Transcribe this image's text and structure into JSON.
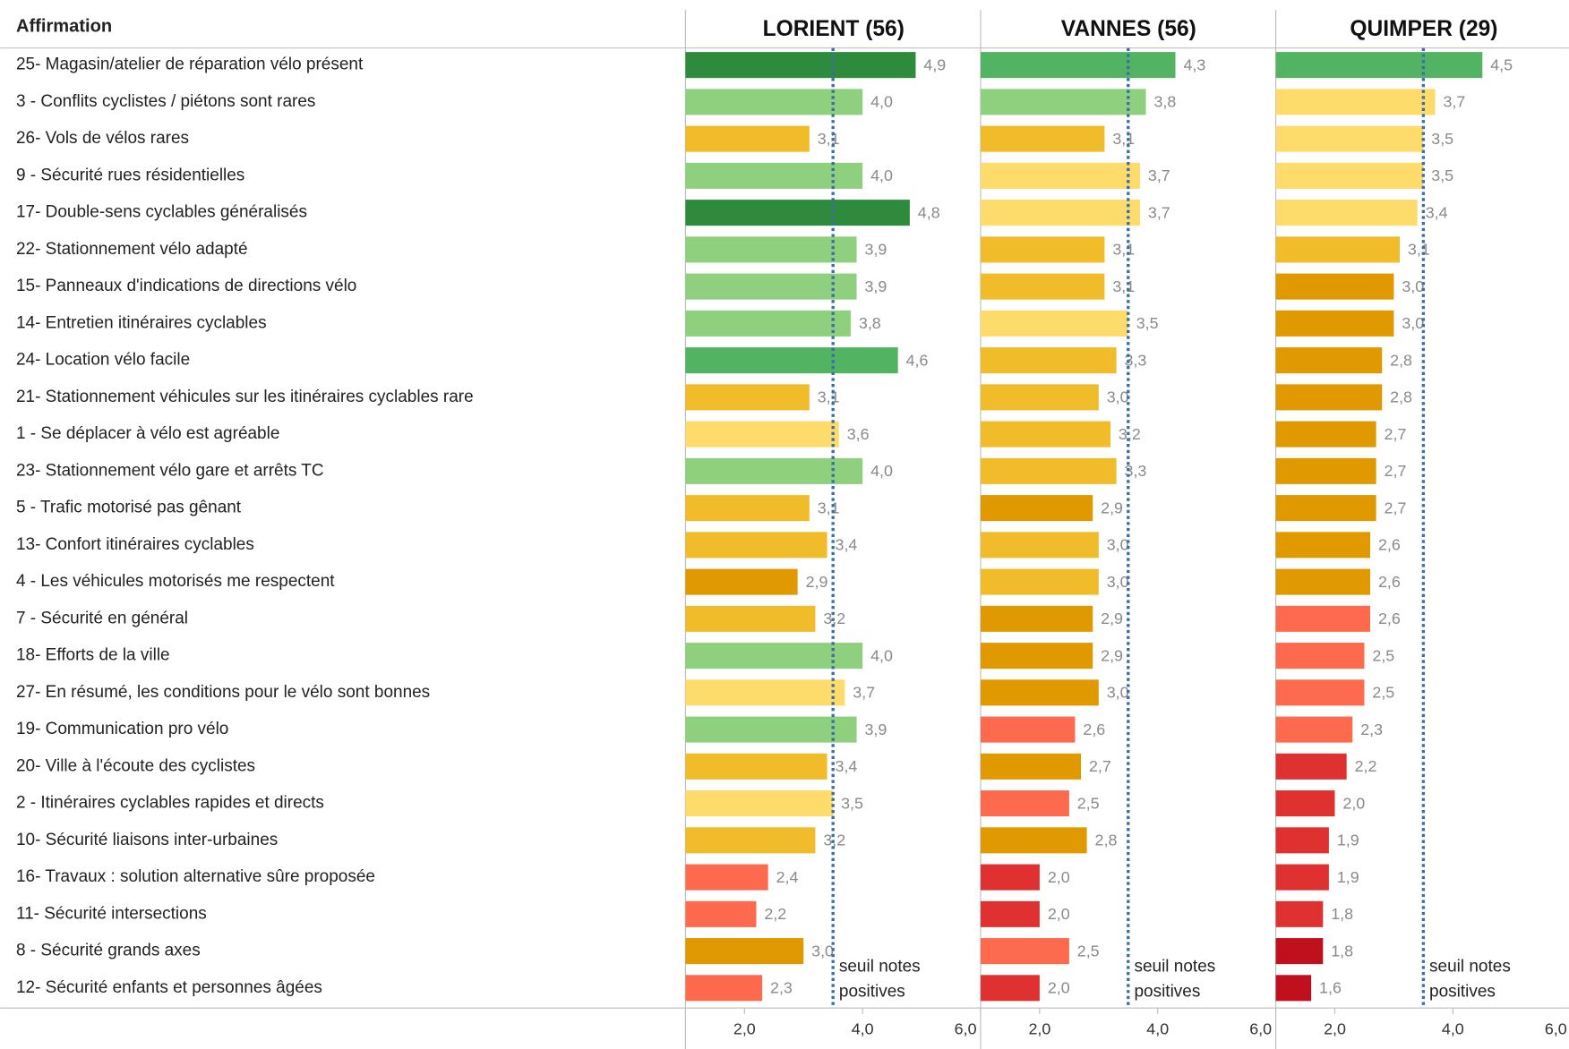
{
  "chart_data": {
    "type": "bar",
    "orientation": "horizontal",
    "header": "Affirmation",
    "categories": [
      "25- Magasin/atelier de réparation vélo présent",
      "3 - Conflits cyclistes / piétons sont rares",
      "26- Vols de vélos rares",
      "9 - Sécurité rues résidentielles",
      "17- Double-sens cyclables généralisés",
      "22- Stationnement vélo adapté",
      "15- Panneaux d'indications de directions vélo",
      "14- Entretien itinéraires cyclables",
      "24- Location vélo facile",
      "21- Stationnement véhicules sur les itinéraires cyclables rare",
      "1 - Se déplacer à vélo est agréable",
      "23- Stationnement vélo gare et arrêts TC",
      "5 - Trafic motorisé pas gênant",
      "13- Confort itinéraires cyclables",
      "4 - Les véhicules motorisés me respectent",
      "7 - Sécurité en général",
      "18- Efforts de la ville",
      "27- En résumé, les conditions pour le vélo sont bonnes",
      "19- Communication pro vélo",
      "20- Ville à l'écoute des cyclistes",
      "2 - Itinéraires cyclables rapides et directs",
      "10- Sécurité liaisons inter-urbaines",
      "16- Travaux : solution alternative sûre proposée",
      "11- Sécurité intersections",
      "8 - Sécurité grands axes",
      "12- Sécurité enfants et personnes âgées"
    ],
    "series": [
      {
        "name": "LORIENT (56)",
        "values": [
          4.9,
          4.0,
          3.1,
          4.0,
          4.8,
          3.9,
          3.9,
          3.8,
          4.6,
          3.1,
          3.6,
          4.0,
          3.1,
          3.4,
          2.9,
          3.2,
          4.0,
          3.7,
          3.9,
          3.4,
          3.5,
          3.2,
          2.4,
          2.2,
          3.0,
          2.3
        ],
        "value_labels": [
          "4,9",
          "4,0",
          "3,1",
          "4,0",
          "4,8",
          "3,9",
          "3,9",
          "3,8",
          "4,6",
          "3,1",
          "3,6",
          "4,0",
          "3,1",
          "3,4",
          "2,9",
          "3,2",
          "4,0",
          "3,7",
          "3,9",
          "3,4",
          "3,5",
          "3,2",
          "2,4",
          "2,2",
          "3,0",
          "2,3"
        ],
        "colors": [
          "#2e8b3e",
          "#8fd07e",
          "#f0bc2a",
          "#8fd07e",
          "#2e8b3e",
          "#8fd07e",
          "#8fd07e",
          "#8fd07e",
          "#52b463",
          "#f0bc2a",
          "#fddc6b",
          "#8fd07e",
          "#f0bc2a",
          "#f0bc2a",
          "#e09a00",
          "#f0bc2a",
          "#8fd07e",
          "#fddc6b",
          "#8fd07e",
          "#f0bc2a",
          "#fddc6b",
          "#f0bc2a",
          "#fd6a4d",
          "#fd6a4d",
          "#e09a00",
          "#fd6a4d"
        ]
      },
      {
        "name": "VANNES (56)",
        "values": [
          4.3,
          3.8,
          3.1,
          3.7,
          3.7,
          3.1,
          3.1,
          3.5,
          3.3,
          3.0,
          3.2,
          3.3,
          2.9,
          3.0,
          3.0,
          2.9,
          2.9,
          3.0,
          2.6,
          2.7,
          2.5,
          2.8,
          2.0,
          2.0,
          2.5,
          2.0
        ],
        "value_labels": [
          "4,3",
          "3,8",
          "3,1",
          "3,7",
          "3,7",
          "3,1",
          "3,1",
          "3,5",
          "3,3",
          "3,0",
          "3,2",
          "3,3",
          "2,9",
          "3,0",
          "3,0",
          "2,9",
          "2,9",
          "3,0",
          "2,6",
          "2,7",
          "2,5",
          "2,8",
          "2,0",
          "2,0",
          "2,5",
          "2,0"
        ],
        "colors": [
          "#52b463",
          "#8fd07e",
          "#f0bc2a",
          "#fddc6b",
          "#fddc6b",
          "#f0bc2a",
          "#f0bc2a",
          "#fddc6b",
          "#f0bc2a",
          "#f0bc2a",
          "#f0bc2a",
          "#f0bc2a",
          "#e09a00",
          "#f0bc2a",
          "#f0bc2a",
          "#e09a00",
          "#e09a00",
          "#e09a00",
          "#fd6a4d",
          "#e09a00",
          "#fd6a4d",
          "#e09a00",
          "#e03131",
          "#e03131",
          "#fd6a4d",
          "#e03131"
        ]
      },
      {
        "name": "QUIMPER (29)",
        "values": [
          4.5,
          3.7,
          3.5,
          3.5,
          3.4,
          3.1,
          3.0,
          3.0,
          2.8,
          2.8,
          2.7,
          2.7,
          2.7,
          2.6,
          2.6,
          2.6,
          2.5,
          2.5,
          2.3,
          2.2,
          2.0,
          1.9,
          1.9,
          1.8,
          1.8,
          1.6
        ],
        "value_labels": [
          "4,5",
          "3,7",
          "3,5",
          "3,5",
          "3,4",
          "3,1",
          "3,0",
          "3,0",
          "2,8",
          "2,8",
          "2,7",
          "2,7",
          "2,7",
          "2,6",
          "2,6",
          "2,6",
          "2,5",
          "2,5",
          "2,3",
          "2,2",
          "2,0",
          "1,9",
          "1,9",
          "1,8",
          "1,8",
          "1,6"
        ],
        "colors": [
          "#52b463",
          "#fddc6b",
          "#fddc6b",
          "#fddc6b",
          "#fddc6b",
          "#f0bc2a",
          "#e09a00",
          "#e09a00",
          "#e09a00",
          "#e09a00",
          "#e09a00",
          "#e09a00",
          "#e09a00",
          "#e09a00",
          "#e09a00",
          "#fd6a4d",
          "#fd6a4d",
          "#fd6a4d",
          "#fd6a4d",
          "#e03131",
          "#e03131",
          "#e03131",
          "#e03131",
          "#e03131",
          "#c0101e",
          "#c0101e"
        ]
      }
    ],
    "xlim": [
      1,
      6
    ],
    "xticks": [
      {
        "value": 2,
        "label": "2,0"
      },
      {
        "value": 4,
        "label": "4,0"
      },
      {
        "value": 6,
        "label": "6,0"
      }
    ],
    "threshold": {
      "value": 3.5,
      "label": [
        "seuil notes",
        "positives"
      ],
      "color": "#3a6ea5"
    }
  }
}
